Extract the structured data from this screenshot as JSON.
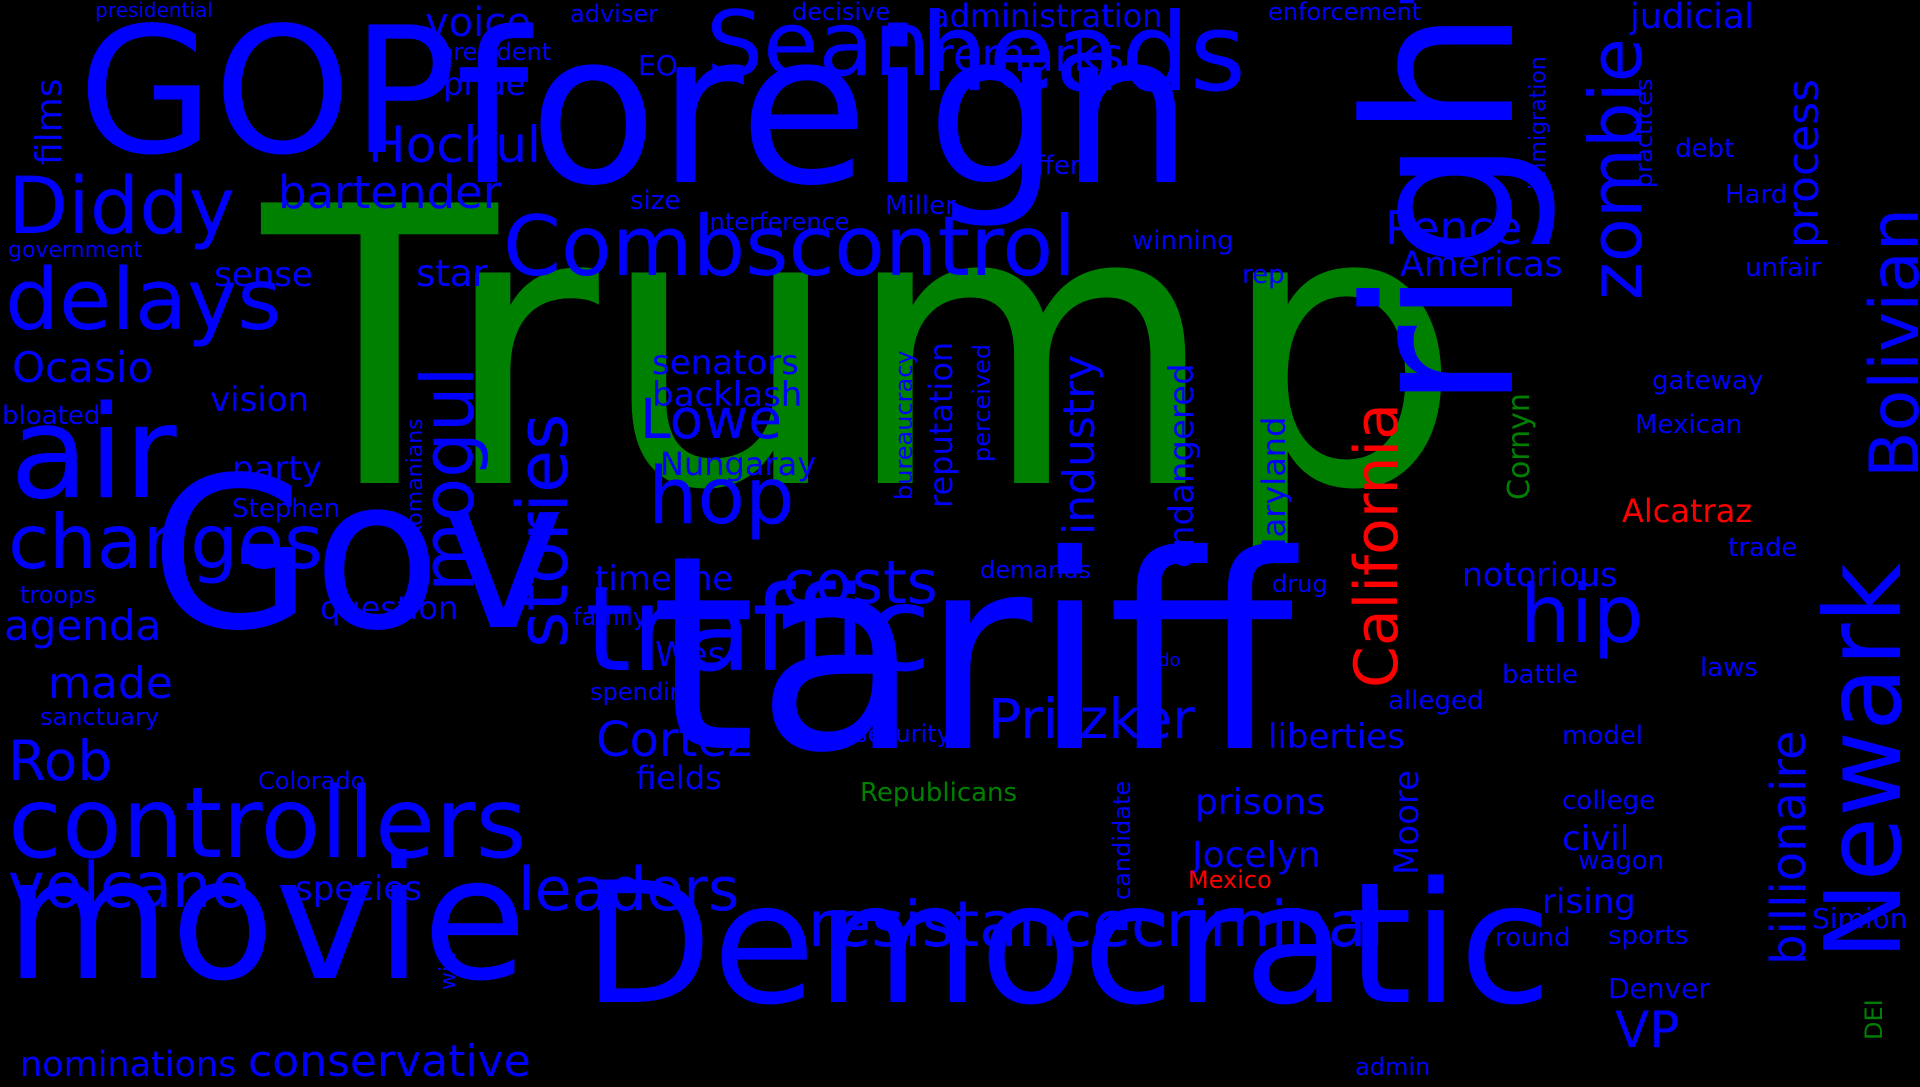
{
  "colors": {
    "background": "#000000",
    "blue": "#0000ff",
    "green": "#008000",
    "red": "#ff0000"
  },
  "words": [
    {
      "text": "Trump",
      "color": "green"
    },
    {
      "text": "foreign",
      "color": "blue"
    },
    {
      "text": "GOP",
      "color": "blue"
    },
    {
      "text": "Gov",
      "color": "blue"
    },
    {
      "text": "tariff",
      "color": "blue"
    },
    {
      "text": "movie",
      "color": "blue"
    },
    {
      "text": "Democratic",
      "color": "blue"
    },
    {
      "text": "traffic",
      "color": "blue"
    },
    {
      "text": "right",
      "color": "blue"
    },
    {
      "text": "heads",
      "color": "blue"
    },
    {
      "text": "air",
      "color": "blue"
    },
    {
      "text": "Newark",
      "color": "blue"
    },
    {
      "text": "controllers",
      "color": "blue"
    },
    {
      "text": "Combscontrol",
      "color": "blue"
    },
    {
      "text": "Sean",
      "color": "blue"
    },
    {
      "text": "delays",
      "color": "blue"
    },
    {
      "text": "Diddy",
      "color": "blue"
    },
    {
      "text": "changes",
      "color": "blue"
    },
    {
      "text": "mogul",
      "color": "blue"
    },
    {
      "text": "stories",
      "color": "blue"
    },
    {
      "text": "hop",
      "color": "blue"
    },
    {
      "text": "hip",
      "color": "blue"
    },
    {
      "text": "zombie",
      "color": "blue"
    },
    {
      "text": "Bolivian",
      "color": "blue"
    },
    {
      "text": "California",
      "color": "red"
    },
    {
      "text": "resistancecriminal",
      "color": "blue"
    },
    {
      "text": "volcano",
      "color": "blue"
    },
    {
      "text": "leaders",
      "color": "blue"
    },
    {
      "text": "costs",
      "color": "blue"
    },
    {
      "text": "Pritzker",
      "color": "blue"
    },
    {
      "text": "Cortez",
      "color": "blue"
    },
    {
      "text": "Rob",
      "color": "blue"
    },
    {
      "text": "made",
      "color": "blue"
    },
    {
      "text": "agenda",
      "color": "blue"
    },
    {
      "text": "Ocasio",
      "color": "blue"
    },
    {
      "text": "Lowe",
      "color": "blue"
    },
    {
      "text": "Hochul",
      "color": "blue"
    },
    {
      "text": "bartender",
      "color": "blue"
    },
    {
      "text": "remarks",
      "color": "blue"
    },
    {
      "text": "voice",
      "color": "blue"
    },
    {
      "text": "administration",
      "color": "blue"
    },
    {
      "text": "judicial",
      "color": "blue"
    },
    {
      "text": "Pence",
      "color": "blue"
    },
    {
      "text": "Americas",
      "color": "blue"
    },
    {
      "text": "industry",
      "color": "blue"
    },
    {
      "text": "process",
      "color": "blue"
    },
    {
      "text": "billionaire",
      "color": "blue"
    },
    {
      "text": "conservative",
      "color": "blue"
    },
    {
      "text": "nominations",
      "color": "blue"
    },
    {
      "text": "VP",
      "color": "blue"
    },
    {
      "text": "Nungaray",
      "color": "blue"
    },
    {
      "text": "timeline",
      "color": "blue"
    },
    {
      "text": "senators",
      "color": "blue"
    },
    {
      "text": "backlash",
      "color": "blue"
    },
    {
      "text": "prisons",
      "color": "blue"
    },
    {
      "text": "Jocelyn",
      "color": "blue"
    },
    {
      "text": "liberties",
      "color": "blue"
    },
    {
      "text": "notorious",
      "color": "blue"
    },
    {
      "text": "rising",
      "color": "blue"
    },
    {
      "text": "civil",
      "color": "blue"
    },
    {
      "text": "Moore",
      "color": "blue"
    },
    {
      "text": "endangered",
      "color": "blue"
    },
    {
      "text": "Maryland",
      "color": "blue"
    },
    {
      "text": "reputation",
      "color": "blue"
    },
    {
      "text": "fields",
      "color": "blue"
    },
    {
      "text": "species",
      "color": "blue"
    },
    {
      "text": "question",
      "color": "blue"
    },
    {
      "text": "party",
      "color": "blue"
    },
    {
      "text": "vision",
      "color": "blue"
    },
    {
      "text": "sense",
      "color": "blue"
    },
    {
      "text": "star",
      "color": "blue"
    },
    {
      "text": "films",
      "color": "blue"
    },
    {
      "text": "pride",
      "color": "blue"
    },
    {
      "text": "Wes",
      "color": "blue"
    },
    {
      "text": "Cornyn",
      "color": "green"
    },
    {
      "text": "Republicans",
      "color": "green"
    },
    {
      "text": "Alcatraz",
      "color": "red"
    },
    {
      "text": "Mexico",
      "color": "red"
    },
    {
      "text": "DEI",
      "color": "green"
    },
    {
      "text": "Simion",
      "color": "blue"
    },
    {
      "text": "Denver",
      "color": "blue"
    },
    {
      "text": "sports",
      "color": "blue"
    },
    {
      "text": "round",
      "color": "blue"
    },
    {
      "text": "wagon",
      "color": "blue"
    },
    {
      "text": "college",
      "color": "blue"
    },
    {
      "text": "model",
      "color": "blue"
    },
    {
      "text": "laws",
      "color": "blue"
    },
    {
      "text": "battle",
      "color": "blue"
    },
    {
      "text": "alleged",
      "color": "blue"
    },
    {
      "text": "trade",
      "color": "blue"
    },
    {
      "text": "Mexican",
      "color": "blue"
    },
    {
      "text": "gateway",
      "color": "blue"
    },
    {
      "text": "unfair",
      "color": "blue"
    },
    {
      "text": "Hard",
      "color": "blue"
    },
    {
      "text": "debt",
      "color": "blue"
    },
    {
      "text": "practices",
      "color": "blue"
    },
    {
      "text": "immigration",
      "color": "blue"
    },
    {
      "text": "enforcement",
      "color": "blue"
    },
    {
      "text": "decisive",
      "color": "blue"
    },
    {
      "text": "adviser",
      "color": "blue"
    },
    {
      "text": "presidential",
      "color": "blue"
    },
    {
      "text": "president",
      "color": "blue"
    },
    {
      "text": "EO",
      "color": "blue"
    },
    {
      "text": "offer",
      "color": "blue"
    },
    {
      "text": "Miller",
      "color": "blue"
    },
    {
      "text": "size",
      "color": "blue"
    },
    {
      "text": "interference",
      "color": "blue"
    },
    {
      "text": "winning",
      "color": "blue"
    },
    {
      "text": "rep",
      "color": "blue"
    },
    {
      "text": "government",
      "color": "blue"
    },
    {
      "text": "bloated",
      "color": "blue"
    },
    {
      "text": "Stephen",
      "color": "blue"
    },
    {
      "text": "troops",
      "color": "blue"
    },
    {
      "text": "Romanians",
      "color": "blue"
    },
    {
      "text": "family",
      "color": "blue"
    },
    {
      "text": "spending",
      "color": "blue"
    },
    {
      "text": "sanctuary",
      "color": "blue"
    },
    {
      "text": "Colorado",
      "color": "blue"
    },
    {
      "text": "security",
      "color": "blue"
    },
    {
      "text": "candidate",
      "color": "blue"
    },
    {
      "text": "redo",
      "color": "blue"
    },
    {
      "text": "drug",
      "color": "blue"
    },
    {
      "text": "demands",
      "color": "blue"
    },
    {
      "text": "perceived",
      "color": "blue"
    },
    {
      "text": "bureaucracy",
      "color": "blue"
    },
    {
      "text": "win",
      "color": "blue"
    },
    {
      "text": "admin",
      "color": "blue"
    }
  ]
}
